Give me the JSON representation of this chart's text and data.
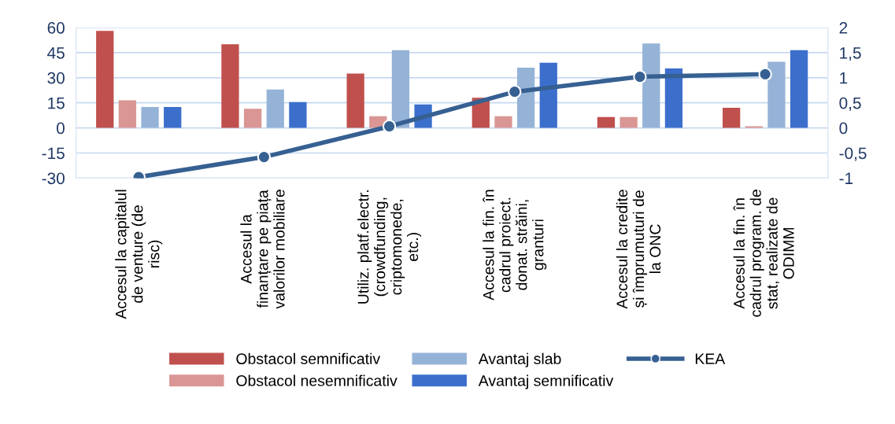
{
  "chart_data": {
    "type": "bar",
    "categories": [
      "Accesul la capitalul\nde venture (de\nrisc)",
      "Accesul la\nfinanțare pe piața\nvalorilor mobiliare",
      "Utiliz. platf.electr.\n(crowdfunding,\ncriptomonede,\netc.)",
      "Accesul la fin. în\ncadrul proiect.\ndonat. străini,\ngranturi",
      "Accesul la credite\nși împrumuturi de\nla ONC",
      "Accesul la fin. în\ncadrul program. de\nstat, realizate de\nODIMM"
    ],
    "series": [
      {
        "name": "Obstacol semnificativ",
        "color": "#c0504d",
        "values": [
          58,
          50,
          32.5,
          18,
          6.5,
          12
        ]
      },
      {
        "name": "Obstacol nesemnificativ",
        "color": "#da9694",
        "values": [
          16.5,
          11.5,
          7,
          7,
          6.5,
          1
        ]
      },
      {
        "name": "Avantaj slab",
        "color": "#95b3d7",
        "values": [
          12.5,
          23,
          46.5,
          36,
          50.5,
          39.5
        ]
      },
      {
        "name": "Avantaj semnificativ",
        "color": "#3c6fcc",
        "values": [
          12.5,
          15.5,
          14,
          39,
          35.5,
          46.5
        ]
      },
      {
        "name": "KEA",
        "type": "line",
        "axis": "y2",
        "color": "#366092",
        "marker": "circle",
        "values": [
          -0.98,
          -0.58,
          0.03,
          0.72,
          1.02,
          1.07
        ]
      }
    ],
    "ylim": [
      -30,
      60
    ],
    "yticks": [
      -30,
      -15,
      0,
      15,
      30,
      45,
      60
    ],
    "y2lim": [
      -1,
      2
    ],
    "y2ticks": [
      {
        "value": -1,
        "label": "-1"
      },
      {
        "value": -0.5,
        "label": "-0,5"
      },
      {
        "value": 0,
        "label": "0"
      },
      {
        "value": 0.5,
        "label": "0,5"
      },
      {
        "value": 1,
        "label": "1"
      },
      {
        "value": 1.5,
        "label": "1,5"
      },
      {
        "value": 2,
        "label": "2"
      }
    ],
    "grid": "y",
    "legend": "bottom"
  }
}
